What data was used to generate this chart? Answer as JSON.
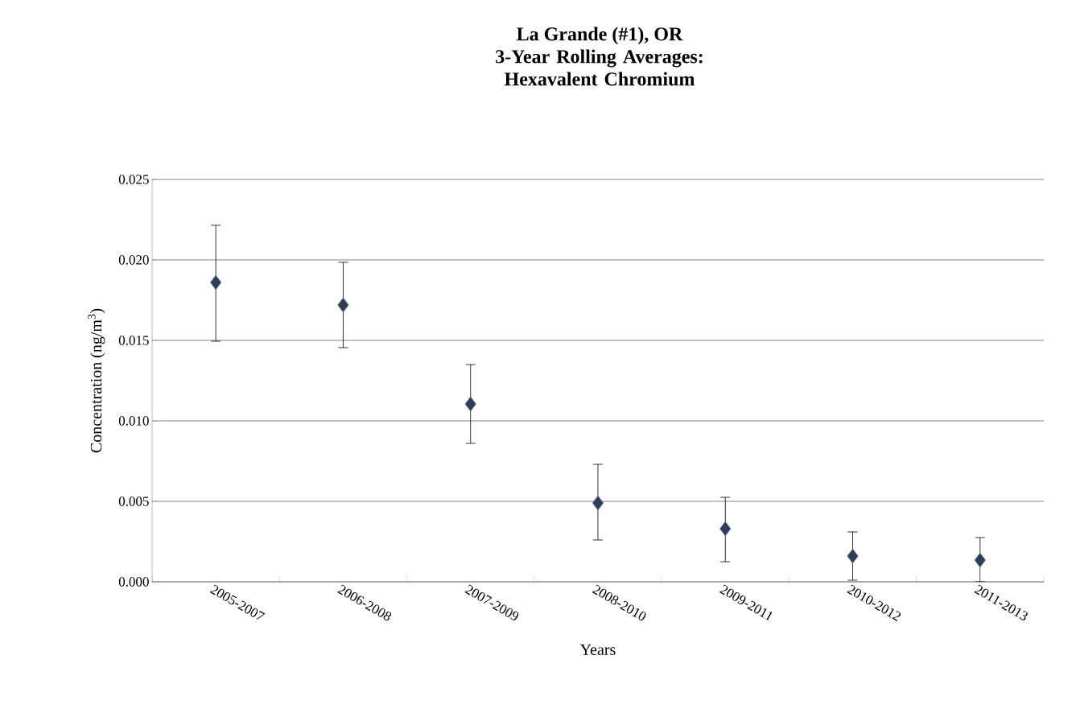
{
  "chart_data": {
    "type": "scatter",
    "title": "La Grande (#1), OR",
    "subtitle": "3-Year Rolling Averages: Hexavalent Chromium",
    "xlabel": "Years",
    "ylabel": "Concentration (ng/m$^{3}$)",
    "categories": [
      "2005-2007",
      "2006-2008",
      "2007-2009",
      "2008-2010",
      "2009-2011",
      "2010-2012",
      "2011-2013"
    ],
    "values": [
      0.0186,
      0.0172,
      0.01105,
      0.0049,
      0.0033,
      0.0016,
      0.00135
    ],
    "errors": [
      [
        0.01495,
        0.02215
      ],
      [
        0.01455,
        0.01985
      ],
      [
        0.0086,
        0.0135
      ],
      [
        0.0026,
        0.0073
      ],
      [
        0.00125,
        0.00525
      ],
      [
        0.0001,
        0.0031
      ],
      [
        0.0,
        0.00275
      ]
    ],
    "color": "#2e3d5a",
    "marker": "diamond",
    "grid": "y",
    "ylim": [
      0,
      0.025
    ],
    "yticks": [
      {
        "value": 0,
        "label": "0.000"
      },
      {
        "value": 0.005,
        "label": "0.005"
      },
      {
        "value": 0.01,
        "label": "0.010"
      },
      {
        "value": 0.015,
        "label": "0.015"
      },
      {
        "value": 0.02,
        "label": "0.020"
      },
      {
        "value": 0.025,
        "label": "0.025"
      }
    ]
  }
}
